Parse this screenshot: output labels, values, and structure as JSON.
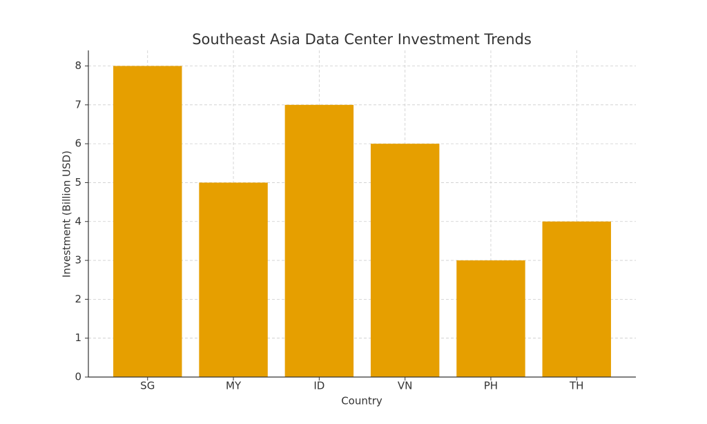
{
  "chart_data": {
    "type": "bar",
    "title": "Southeast Asia Data Center Investment Trends",
    "x_label": "Country",
    "y_label": "Investment (Billion USD)",
    "categories": [
      "SG",
      "MY",
      "ID",
      "VN",
      "PH",
      "TH"
    ],
    "values": [
      8,
      5,
      7,
      6,
      3,
      4
    ],
    "color": "#e69f00",
    "ylim": [
      0,
      8.4
    ],
    "yticks": [
      0,
      1,
      2,
      3,
      4,
      5,
      6,
      7,
      8
    ],
    "grid": true
  }
}
